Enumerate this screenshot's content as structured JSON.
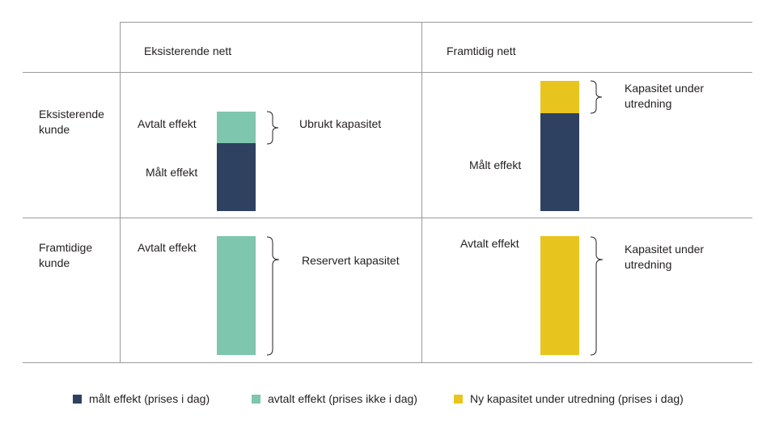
{
  "columns": {
    "existing_net": "Eksisterende nett",
    "future_net": "Framtidig nett"
  },
  "rows": {
    "existing_customer": [
      "Eksisterende",
      "kunde"
    ],
    "future_customer": [
      "Framtidige",
      "kunde"
    ]
  },
  "cells": {
    "existing_existing": {
      "agreed_label": "Avtalt effekt",
      "measured_label": "Målt effekt",
      "brace_label": "Ubrukt kapasitet"
    },
    "existing_future": {
      "measured_label": "Målt effekt",
      "brace_label": [
        "Kapasitet under",
        "utredning"
      ]
    },
    "future_existing": {
      "agreed_label": "Avtalt effekt",
      "brace_label": "Reservert kapasitet"
    },
    "future_future": {
      "agreed_label": "Avtalt effekt",
      "brace_label": [
        "Kapasitet under",
        "utredning"
      ]
    }
  },
  "legend": [
    {
      "label": "målt effekt  (prises i dag)",
      "color": "#2e4160"
    },
    {
      "label": "avtalt effekt (prises ikke i dag)",
      "color": "#7fc6ae"
    },
    {
      "label": "Ny kapasitet under utredning (prises i dag)",
      "color": "#e8c51e"
    }
  ],
  "colors": {
    "measured": "#2e4160",
    "agreed": "#7fc6ae",
    "investigation": "#e8c51e",
    "grid": "#9a9a9a"
  }
}
